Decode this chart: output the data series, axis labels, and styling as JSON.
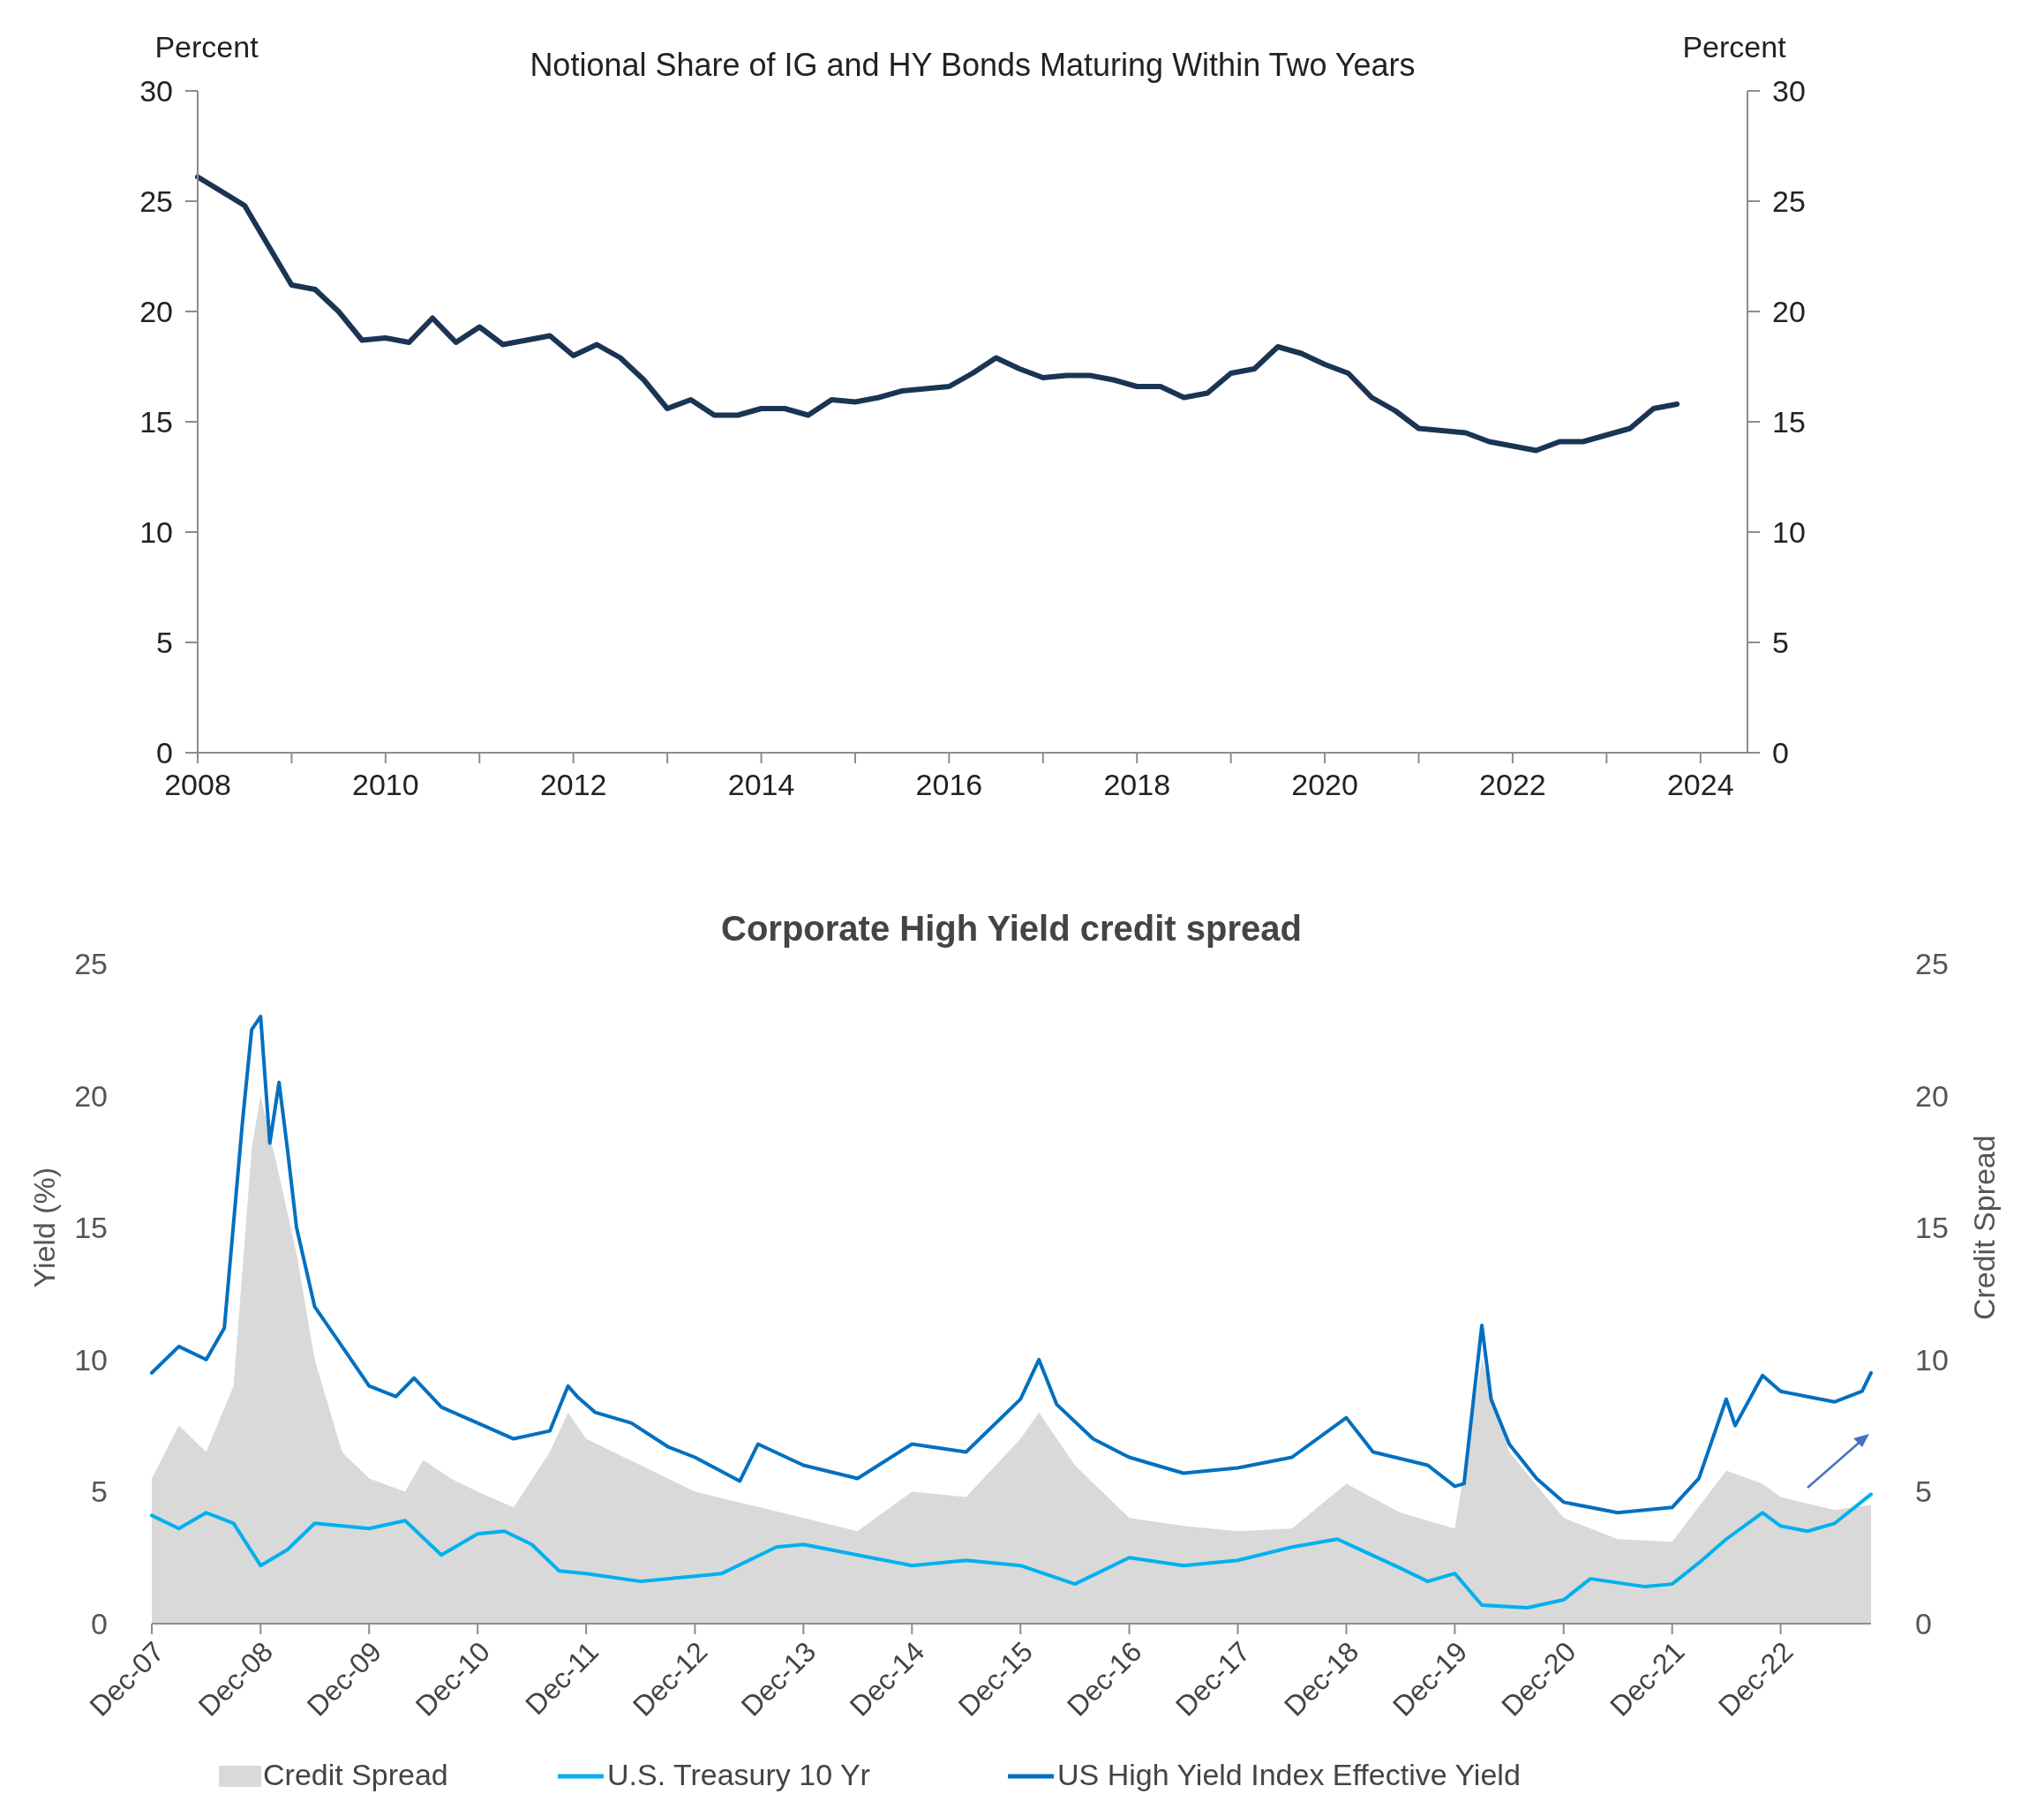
{
  "chart_data": [
    {
      "type": "line",
      "title": "Notional Share of IG and HY Bonds Maturing Within Two Years",
      "ylabel": "Percent",
      "y2label": "Percent",
      "xlim": [
        2008,
        2024.5
      ],
      "xticks": [
        2008,
        {
          "value": 2009,
          "label": null
        },
        2010,
        {
          "value": 2011,
          "label": null
        },
        2012,
        {
          "value": 2013,
          "label": null
        },
        2014,
        {
          "value": 2015,
          "label": null
        },
        2016,
        {
          "value": 2017,
          "label": null
        },
        2018,
        {
          "value": 2019,
          "label": null
        },
        2020,
        {
          "value": 2021,
          "label": null
        },
        2022,
        {
          "value": 2023,
          "label": null
        },
        2024
      ],
      "ylim": [
        0,
        30
      ],
      "yticks": [
        0,
        5,
        10,
        15,
        20,
        25,
        30
      ],
      "y2lim": [
        0,
        30
      ],
      "y2ticks": [
        0,
        5,
        10,
        15,
        20,
        25,
        30
      ],
      "x": [
        2008,
        2008.5,
        2008.75,
        2009,
        2009.25,
        2009.5,
        2009.75,
        2010,
        2010.25,
        2010.5,
        2010.75,
        2011,
        2011.25,
        2011.5,
        2011.75,
        2012,
        2012.25,
        2012.5,
        2012.75,
        2013,
        2013.25,
        2013.5,
        2013.75,
        2014,
        2014.25,
        2014.5,
        2014.75,
        2015,
        2015.25,
        2015.5,
        2015.75,
        2016,
        2016.25,
        2016.5,
        2016.75,
        2017,
        2017.25,
        2017.5,
        2017.75,
        2018,
        2018.25,
        2018.5,
        2018.75,
        2019,
        2019.25,
        2019.5,
        2019.75,
        2020,
        2020.25,
        2020.5,
        2020.75,
        2021,
        2021.25,
        2021.5,
        2021.75,
        2022,
        2022.25,
        2022.5,
        2022.75,
        2023,
        2023.25,
        2023.5,
        2023.75
      ],
      "series": [
        {
          "color": "#1a3553",
          "values": [
            26.1,
            24.8,
            23.0,
            21.2,
            21.0,
            20.0,
            18.7,
            18.8,
            18.6,
            19.7,
            18.6,
            19.3,
            18.5,
            18.7,
            18.9,
            18.0,
            18.5,
            17.9,
            16.9,
            15.6,
            16.0,
            15.3,
            15.3,
            15.6,
            15.6,
            15.3,
            16.0,
            15.9,
            16.1,
            16.4,
            16.5,
            16.6,
            17.2,
            17.9,
            17.4,
            17.0,
            17.1,
            17.1,
            16.9,
            16.6,
            16.6,
            16.1,
            16.3,
            17.2,
            17.4,
            18.4,
            18.1,
            17.6,
            17.2,
            16.1,
            15.5,
            14.7,
            14.6,
            14.5,
            14.1,
            13.9,
            13.7,
            14.1,
            14.1,
            14.4,
            14.7,
            15.6,
            15.8
          ]
        }
      ]
    },
    {
      "type": "line",
      "title": "Corporate High Yield credit spread",
      "ylabel": "Yield (%)",
      "y2label": "Credit Spread",
      "legend": "bottom",
      "xlim": [
        "2007-12",
        "2023-10"
      ],
      "xticks": [
        {
          "value": "2007-12",
          "label": "Dec-07"
        },
        {
          "value": "2008-12",
          "label": "Dec-08"
        },
        {
          "value": "2009-12",
          "label": "Dec-09"
        },
        {
          "value": "2010-12",
          "label": "Dec-10"
        },
        {
          "value": "2011-12",
          "label": "Dec-11"
        },
        {
          "value": "2012-12",
          "label": "Dec-12"
        },
        {
          "value": "2013-12",
          "label": "Dec-13"
        },
        {
          "value": "2014-12",
          "label": "Dec-14"
        },
        {
          "value": "2015-12",
          "label": "Dec-15"
        },
        {
          "value": "2016-12",
          "label": "Dec-16"
        },
        {
          "value": "2017-12",
          "label": "Dec-17"
        },
        {
          "value": "2018-12",
          "label": "Dec-18"
        },
        {
          "value": "2019-12",
          "label": "Dec-19"
        },
        {
          "value": "2020-12",
          "label": "Dec-20"
        },
        {
          "value": "2021-12",
          "label": "Dec-21"
        },
        {
          "value": "2022-12",
          "label": "Dec-22"
        }
      ],
      "ylim": [
        0,
        25
      ],
      "yticks": [
        0,
        5,
        10,
        15,
        20,
        25
      ],
      "y2lim": [
        0,
        25
      ],
      "y2ticks": [
        0,
        5,
        10,
        15,
        20,
        25
      ],
      "series": [
        {
          "name": "Credit Spread",
          "type": "area",
          "color": "#d9d9d9",
          "x": [
            "2007-12",
            "2008-03",
            "2008-06",
            "2008-09",
            "2008-11",
            "2008-12",
            "2009-02",
            "2009-04",
            "2009-06",
            "2009-09",
            "2009-12",
            "2010-04",
            "2010-06",
            "2010-09",
            "2010-12",
            "2011-04",
            "2011-08",
            "2011-10",
            "2011-12",
            "2012-06",
            "2012-12",
            "2013-06",
            "2013-12",
            "2014-06",
            "2014-12",
            "2015-06",
            "2015-12",
            "2016-02",
            "2016-06",
            "2016-12",
            "2017-06",
            "2017-12",
            "2018-06",
            "2018-12",
            "2019-06",
            "2019-12",
            "2020-03",
            "2020-06",
            "2020-12",
            "2021-06",
            "2021-12",
            "2022-06",
            "2022-10",
            "2022-12",
            "2023-06",
            "2023-10"
          ],
          "values": [
            5.5,
            7.5,
            6.5,
            9,
            18,
            20,
            17,
            14,
            10,
            6.5,
            5.5,
            5,
            6.2,
            5.5,
            5,
            4.4,
            6.5,
            8,
            7,
            6,
            5,
            4.5,
            4,
            3.5,
            5,
            4.8,
            7,
            8,
            6,
            4,
            3.7,
            3.5,
            3.6,
            5.3,
            4.2,
            3.6,
            10,
            6.5,
            4,
            3.2,
            3.1,
            5.8,
            5.3,
            4.8,
            4.3,
            4.5
          ]
        },
        {
          "name": "U.S. Treasury 10 Yr",
          "color": "#00b0f0",
          "x": [
            "2007-12",
            "2008-03",
            "2008-06",
            "2008-09",
            "2008-12",
            "2009-03",
            "2009-06",
            "2009-12",
            "2010-04",
            "2010-08",
            "2010-12",
            "2011-03",
            "2011-06",
            "2011-09",
            "2011-12",
            "2012-06",
            "2012-12",
            "2013-03",
            "2013-09",
            "2013-12",
            "2014-06",
            "2014-12",
            "2015-06",
            "2015-12",
            "2016-06",
            "2016-12",
            "2017-06",
            "2017-12",
            "2018-06",
            "2018-11",
            "2019-06",
            "2019-09",
            "2019-12",
            "2020-03",
            "2020-08",
            "2020-12",
            "2021-03",
            "2021-09",
            "2021-12",
            "2022-03",
            "2022-06",
            "2022-10",
            "2022-12",
            "2023-03",
            "2023-06",
            "2023-10"
          ],
          "values": [
            4.1,
            3.6,
            4.2,
            3.8,
            2.2,
            2.8,
            3.8,
            3.6,
            3.9,
            2.6,
            3.4,
            3.5,
            3,
            2,
            1.9,
            1.6,
            1.8,
            1.9,
            2.9,
            3,
            2.6,
            2.2,
            2.4,
            2.2,
            1.5,
            2.5,
            2.2,
            2.4,
            2.9,
            3.2,
            2.1,
            1.6,
            1.9,
            0.7,
            0.6,
            0.9,
            1.7,
            1.4,
            1.5,
            2.3,
            3.2,
            4.2,
            3.7,
            3.5,
            3.8,
            4.9
          ]
        },
        {
          "name": "US High Yield Index Effective Yield",
          "color": "#0070c0",
          "x": [
            "2007-12",
            "2008-03",
            "2008-06",
            "2008-08",
            "2008-10",
            "2008-11",
            "2008-12",
            "2009-01",
            "2009-02",
            "2009-03",
            "2009-04",
            "2009-06",
            "2009-09",
            "2009-12",
            "2010-03",
            "2010-05",
            "2010-08",
            "2010-12",
            "2011-04",
            "2011-08",
            "2011-10",
            "2011-11",
            "2012-01",
            "2012-05",
            "2012-09",
            "2012-12",
            "2013-05",
            "2013-07",
            "2013-12",
            "2014-06",
            "2014-12",
            "2015-06",
            "2015-12",
            "2016-02",
            "2016-04",
            "2016-08",
            "2016-12",
            "2017-06",
            "2017-12",
            "2018-06",
            "2018-12",
            "2019-03",
            "2019-09",
            "2019-12",
            "2020-01",
            "2020-03",
            "2020-04",
            "2020-06",
            "2020-09",
            "2020-12",
            "2021-06",
            "2021-12",
            "2022-03",
            "2022-06",
            "2022-07",
            "2022-10",
            "2022-12",
            "2023-03",
            "2023-06",
            "2023-09",
            "2023-10"
          ],
          "values": [
            9.5,
            10.5,
            10,
            11.2,
            19,
            22.5,
            23,
            18.2,
            20.5,
            18,
            15,
            12,
            10.5,
            9,
            8.6,
            9.3,
            8.2,
            7.6,
            7,
            7.3,
            9,
            8.6,
            8,
            7.6,
            6.7,
            6.3,
            5.4,
            6.8,
            6,
            5.5,
            6.8,
            6.5,
            8.5,
            10,
            8.3,
            7,
            6.3,
            5.7,
            5.9,
            6.3,
            7.8,
            6.5,
            6,
            5.2,
            5.3,
            11.3,
            8.5,
            6.8,
            5.5,
            4.6,
            4.2,
            4.4,
            5.5,
            8.5,
            7.5,
            9.4,
            8.8,
            8.6,
            8.4,
            8.8,
            9.5
          ]
        }
      ]
    }
  ]
}
